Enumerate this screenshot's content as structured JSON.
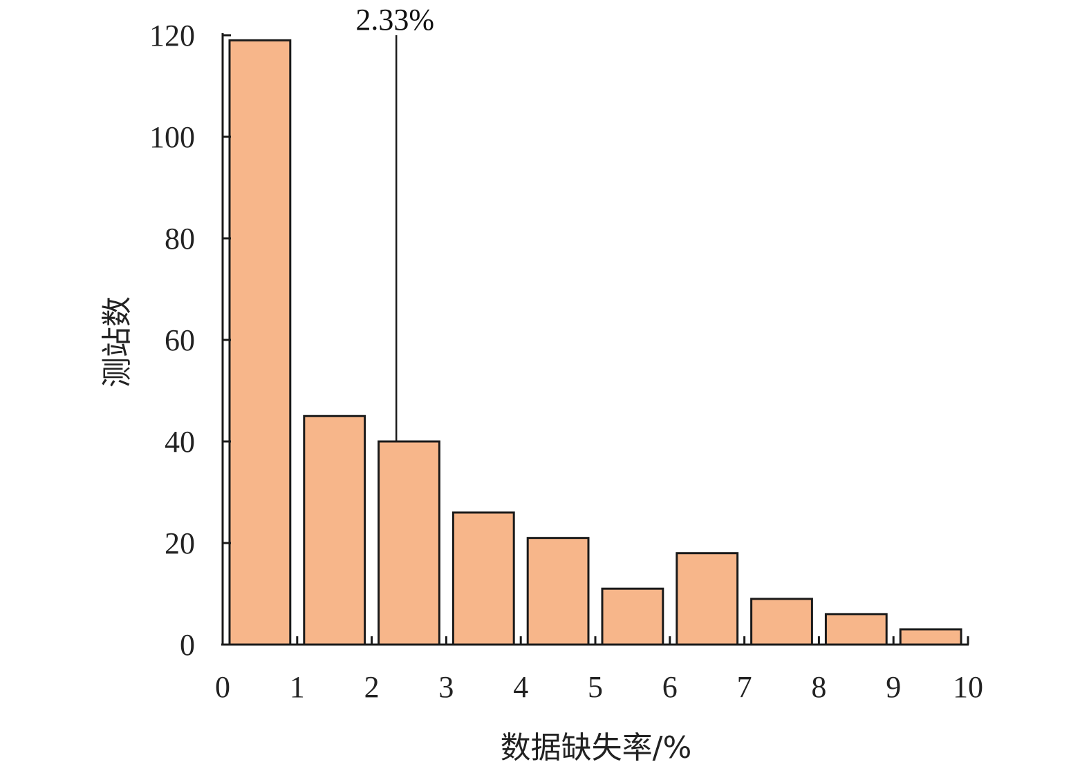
{
  "chart_data": {
    "type": "bar",
    "bins": [
      [
        0,
        1
      ],
      [
        1,
        2
      ],
      [
        2,
        3
      ],
      [
        3,
        4
      ],
      [
        4,
        5
      ],
      [
        5,
        6
      ],
      [
        6,
        7
      ],
      [
        7,
        8
      ],
      [
        8,
        9
      ],
      [
        9,
        10
      ]
    ],
    "values": [
      119,
      45,
      40,
      26,
      21,
      11,
      18,
      9,
      6,
      3
    ],
    "xlabel": "数据缺失率/%",
    "ylabel": "测站数",
    "xlim": [
      0,
      10
    ],
    "ylim": [
      0,
      120
    ],
    "x_ticks": [
      "0",
      "1",
      "2",
      "3",
      "4",
      "5",
      "6",
      "7",
      "8",
      "9",
      "10"
    ],
    "y_ticks": [
      "0",
      "20",
      "40",
      "60",
      "80",
      "100",
      "120"
    ],
    "grid": false,
    "legend": "none",
    "annotation": {
      "x": 2.33,
      "label": "2.33%"
    },
    "colors": {
      "bar_fill": "#F7B68A",
      "bar_stroke": "#1a1a1a",
      "axis": "#1a1a1a"
    }
  }
}
